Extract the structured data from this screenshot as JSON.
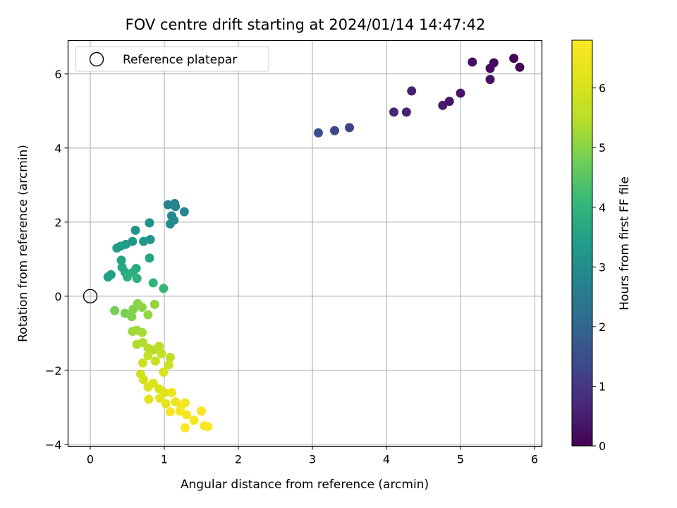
{
  "chart_data": {
    "type": "scatter",
    "title": "FOV centre drift starting at 2024/01/14 14:47:42",
    "xlabel": "Angular distance from reference (arcmin)",
    "ylabel": "Rotation from reference (arcmin)",
    "xlim": [
      -0.3,
      6.1
    ],
    "ylim": [
      -4.05,
      6.9
    ],
    "x_ticks": [
      0,
      1,
      2,
      3,
      4,
      5,
      6
    ],
    "y_ticks": [
      -4,
      -2,
      0,
      2,
      4,
      6
    ],
    "grid": true,
    "legend": {
      "position": "top-left",
      "entries": [
        "Reference platepar"
      ]
    },
    "reference_point": {
      "x": 0,
      "y": 0
    },
    "colorbar": {
      "label": "Hours from first FF file",
      "colormap": "viridis",
      "range": [
        0,
        6.8
      ],
      "ticks": [
        0,
        1,
        2,
        3,
        4,
        5,
        6
      ]
    },
    "points": [
      {
        "x": 5.72,
        "y": 6.42,
        "c": 0.05
      },
      {
        "x": 5.8,
        "y": 6.18,
        "c": 0.1
      },
      {
        "x": 5.45,
        "y": 6.3,
        "c": 0.15
      },
      {
        "x": 5.4,
        "y": 6.15,
        "c": 0.2
      },
      {
        "x": 5.16,
        "y": 6.32,
        "c": 0.25
      },
      {
        "x": 5.4,
        "y": 5.85,
        "c": 0.3
      },
      {
        "x": 5.0,
        "y": 5.48,
        "c": 0.35
      },
      {
        "x": 4.85,
        "y": 5.26,
        "c": 0.4
      },
      {
        "x": 4.76,
        "y": 5.15,
        "c": 0.45
      },
      {
        "x": 4.34,
        "y": 5.54,
        "c": 0.55
      },
      {
        "x": 4.27,
        "y": 4.97,
        "c": 0.6
      },
      {
        "x": 4.1,
        "y": 4.97,
        "c": 0.65
      },
      {
        "x": 3.5,
        "y": 4.55,
        "c": 1.25
      },
      {
        "x": 3.3,
        "y": 4.47,
        "c": 1.35
      },
      {
        "x": 3.08,
        "y": 4.41,
        "c": 1.45
      },
      {
        "x": 1.14,
        "y": 2.5,
        "c": 2.7
      },
      {
        "x": 1.15,
        "y": 2.42,
        "c": 2.75
      },
      {
        "x": 1.05,
        "y": 2.47,
        "c": 2.8
      },
      {
        "x": 1.27,
        "y": 2.28,
        "c": 2.85
      },
      {
        "x": 1.1,
        "y": 2.17,
        "c": 2.9
      },
      {
        "x": 1.13,
        "y": 2.05,
        "c": 2.95
      },
      {
        "x": 1.08,
        "y": 1.95,
        "c": 3.0
      },
      {
        "x": 0.8,
        "y": 1.98,
        "c": 3.05
      },
      {
        "x": 0.61,
        "y": 1.78,
        "c": 3.1
      },
      {
        "x": 0.81,
        "y": 1.53,
        "c": 3.15
      },
      {
        "x": 0.72,
        "y": 1.48,
        "c": 3.2
      },
      {
        "x": 0.57,
        "y": 1.48,
        "c": 3.25
      },
      {
        "x": 0.48,
        "y": 1.4,
        "c": 3.3
      },
      {
        "x": 0.41,
        "y": 1.35,
        "c": 3.35
      },
      {
        "x": 0.36,
        "y": 1.3,
        "c": 3.4
      },
      {
        "x": 0.28,
        "y": 0.58,
        "c": 3.45
      },
      {
        "x": 0.24,
        "y": 0.52,
        "c": 3.5
      },
      {
        "x": 0.42,
        "y": 0.97,
        "c": 3.55
      },
      {
        "x": 0.8,
        "y": 1.03,
        "c": 3.6
      },
      {
        "x": 0.43,
        "y": 0.78,
        "c": 3.65
      },
      {
        "x": 0.47,
        "y": 0.65,
        "c": 3.7
      },
      {
        "x": 0.62,
        "y": 0.75,
        "c": 3.75
      },
      {
        "x": 0.58,
        "y": 0.65,
        "c": 3.8
      },
      {
        "x": 0.5,
        "y": 0.52,
        "c": 3.85
      },
      {
        "x": 0.63,
        "y": 0.48,
        "c": 3.9
      },
      {
        "x": 0.85,
        "y": 0.36,
        "c": 4.0
      },
      {
        "x": 0.99,
        "y": 0.21,
        "c": 4.05
      },
      {
        "x": 0.33,
        "y": -0.39,
        "c": 4.8
      },
      {
        "x": 0.47,
        "y": -0.46,
        "c": 4.85
      },
      {
        "x": 0.56,
        "y": -0.55,
        "c": 4.9
      },
      {
        "x": 0.58,
        "y": -0.35,
        "c": 4.95
      },
      {
        "x": 0.64,
        "y": -0.2,
        "c": 5.0
      },
      {
        "x": 0.7,
        "y": -0.3,
        "c": 5.05
      },
      {
        "x": 0.87,
        "y": -0.22,
        "c": 5.1
      },
      {
        "x": 0.78,
        "y": -0.5,
        "c": 5.15
      },
      {
        "x": 0.57,
        "y": -0.95,
        "c": 5.2
      },
      {
        "x": 0.63,
        "y": -0.92,
        "c": 5.25
      },
      {
        "x": 0.7,
        "y": -0.98,
        "c": 5.3
      },
      {
        "x": 0.63,
        "y": -1.3,
        "c": 5.35
      },
      {
        "x": 0.71,
        "y": -1.25,
        "c": 5.4
      },
      {
        "x": 0.78,
        "y": -1.4,
        "c": 5.45
      },
      {
        "x": 0.85,
        "y": -1.45,
        "c": 5.5
      },
      {
        "x": 0.93,
        "y": -1.35,
        "c": 5.55
      },
      {
        "x": 1.08,
        "y": -1.65,
        "c": 5.6
      },
      {
        "x": 0.96,
        "y": -1.55,
        "c": 5.65
      },
      {
        "x": 0.78,
        "y": -1.6,
        "c": 5.7
      },
      {
        "x": 0.88,
        "y": -1.75,
        "c": 5.75
      },
      {
        "x": 1.06,
        "y": -1.85,
        "c": 5.8
      },
      {
        "x": 0.71,
        "y": -1.8,
        "c": 5.85
      },
      {
        "x": 0.68,
        "y": -2.1,
        "c": 5.9
      },
      {
        "x": 0.72,
        "y": -2.25,
        "c": 5.95
      },
      {
        "x": 0.99,
        "y": -2.05,
        "c": 6.0
      },
      {
        "x": 0.78,
        "y": -2.45,
        "c": 6.05
      },
      {
        "x": 0.85,
        "y": -2.35,
        "c": 6.1
      },
      {
        "x": 0.93,
        "y": -2.5,
        "c": 6.15
      },
      {
        "x": 1.0,
        "y": -2.6,
        "c": 6.2
      },
      {
        "x": 0.79,
        "y": -2.78,
        "c": 6.25
      },
      {
        "x": 0.94,
        "y": -2.75,
        "c": 6.3
      },
      {
        "x": 1.02,
        "y": -2.9,
        "c": 6.35
      },
      {
        "x": 1.1,
        "y": -2.6,
        "c": 6.4
      },
      {
        "x": 1.15,
        "y": -2.85,
        "c": 6.45
      },
      {
        "x": 1.23,
        "y": -2.95,
        "c": 6.5
      },
      {
        "x": 1.28,
        "y": -2.88,
        "c": 6.55
      },
      {
        "x": 1.08,
        "y": -3.12,
        "c": 6.6
      },
      {
        "x": 1.21,
        "y": -3.1,
        "c": 6.62
      },
      {
        "x": 1.3,
        "y": -3.2,
        "c": 6.65
      },
      {
        "x": 1.4,
        "y": -3.35,
        "c": 6.68
      },
      {
        "x": 1.5,
        "y": -3.1,
        "c": 6.7
      },
      {
        "x": 1.54,
        "y": -3.5,
        "c": 6.72
      },
      {
        "x": 1.59,
        "y": -3.52,
        "c": 6.75
      },
      {
        "x": 1.28,
        "y": -3.55,
        "c": 6.78
      }
    ]
  }
}
